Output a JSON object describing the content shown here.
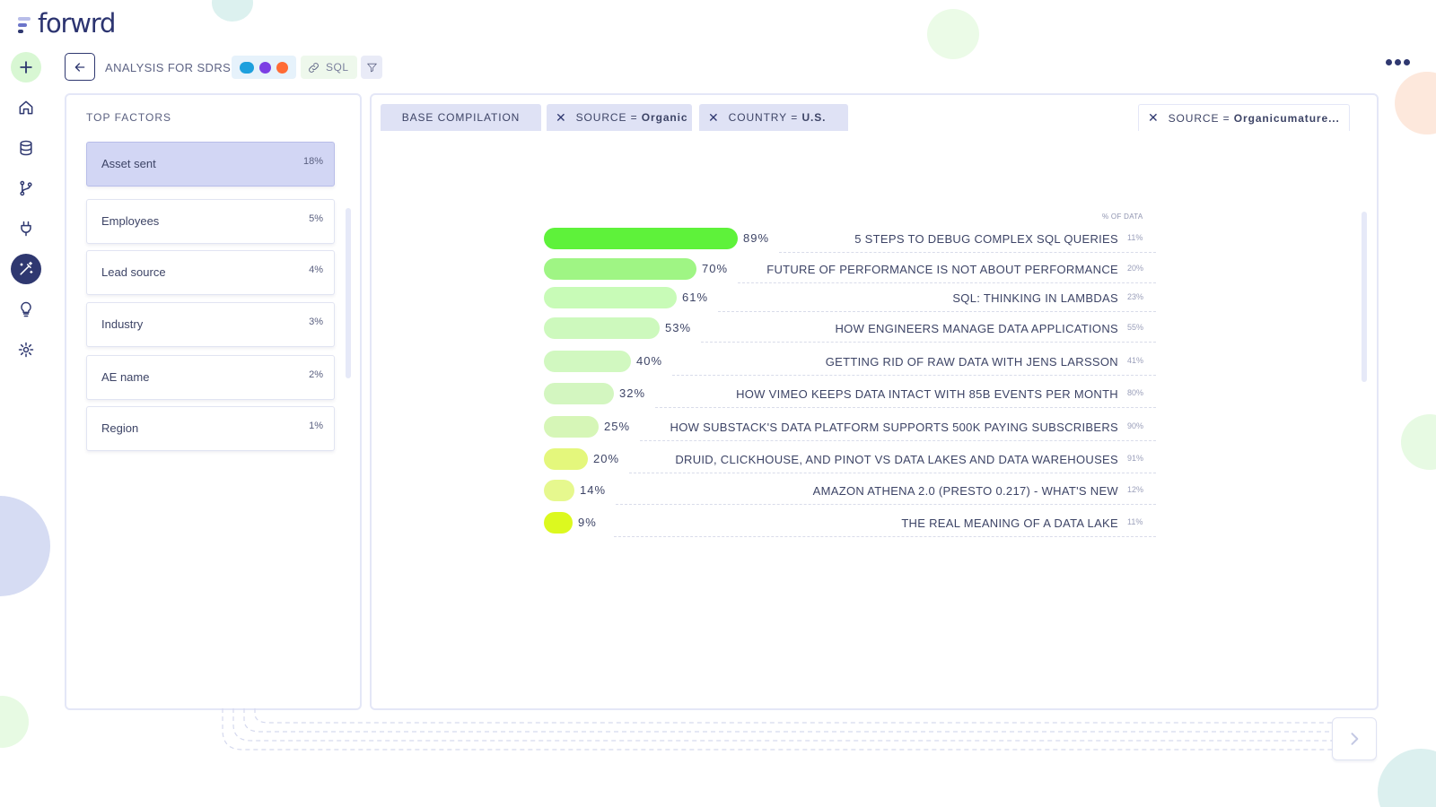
{
  "brand": {
    "logo_text": "forwrd",
    "logo_colors": [
      "#b8bde9",
      "#6b74c9",
      "#2f3870"
    ]
  },
  "nav": {
    "items": [
      {
        "icon": "plus-icon",
        "active": false
      },
      {
        "icon": "home-icon",
        "active": false
      },
      {
        "icon": "database-icon",
        "active": false
      },
      {
        "icon": "git-branch-icon",
        "active": false
      },
      {
        "icon": "plug-icon",
        "active": false
      },
      {
        "icon": "magic-wand-icon",
        "active": true
      },
      {
        "icon": "lightbulb-icon",
        "active": false
      },
      {
        "icon": "settings-icon",
        "active": false
      }
    ]
  },
  "header": {
    "title": "ANALYSIS FOR SDRS",
    "integrations": [
      "salesforce-icon",
      "shield-icon",
      "hubspot-icon"
    ],
    "sql_label": "SQL"
  },
  "factors": {
    "heading": "TOP FACTORS",
    "items": [
      {
        "name": "Asset sent",
        "pct": "18%",
        "active": true
      },
      {
        "name": "Employees",
        "pct": "5%",
        "active": false
      },
      {
        "name": "Lead source",
        "pct": "4%",
        "active": false
      },
      {
        "name": "Industry",
        "pct": "3%",
        "active": false
      },
      {
        "name": "AE name",
        "pct": "2%",
        "active": false
      },
      {
        "name": "Region",
        "pct": "1%",
        "active": false
      }
    ]
  },
  "tabs": {
    "base": "BASE COMPILATION",
    "filters": [
      {
        "key": "SOURCE",
        "op": "=",
        "value": "Organic"
      },
      {
        "key": "COUNTRY",
        "op": "=",
        "value": "U.S."
      }
    ],
    "extra": {
      "key": "SOURCE",
      "op": "=",
      "value": "Organicumature..."
    }
  },
  "chart_data": {
    "type": "bar",
    "orientation": "horizontal",
    "column_label": "% OF DATA",
    "categories": [
      "5 STEPS TO DEBUG COMPLEX SQL QUERIES",
      "FUTURE OF PERFORMANCE IS NOT ABOUT PERFORMANCE",
      "SQL: THINKING IN LAMBDAS",
      "HOW ENGINEERS MANAGE DATA APPLICATIONS",
      "GETTING RID OF RAW DATA WITH JENS LARSSON",
      "HOW VIMEO KEEPS DATA INTACT WITH 85B EVENTS PER MONTH",
      "HOW SUBSTACK'S DATA PLATFORM SUPPORTS 500K PAYING SUBSCRIBERS",
      "DRUID, CLICKHOUSE, AND PINOT VS DATA LAKES AND DATA WAREHOUSES",
      "AMAZON ATHENA 2.0 (PRESTO 0.217) - WHAT'S NEW",
      "THE REAL MEANING OF A DATA LAKE"
    ],
    "values": [
      89,
      70,
      61,
      53,
      40,
      32,
      25,
      20,
      14,
      9
    ],
    "value_labels": [
      "89%",
      "70%",
      "61%",
      "53%",
      "40%",
      "32%",
      "25%",
      "20%",
      "14%",
      "9%"
    ],
    "share_of_data": [
      "11%",
      "20%",
      "23%",
      "55%",
      "41%",
      "80%",
      "90%",
      "91%",
      "12%",
      "11%"
    ],
    "colors": [
      "#5ef23a",
      "#9ff584",
      "#c8fbb7",
      "#cdf9bd",
      "#d1f8c0",
      "#d3f6c0",
      "#d6f6b7",
      "#e4f77c",
      "#e6f88e",
      "#dcf91f"
    ],
    "xlim": [
      0,
      100
    ]
  },
  "theme": {
    "accent": "#2f3870",
    "panel_border": "#e4e7f7",
    "active_factor": "#d2d6f4"
  }
}
